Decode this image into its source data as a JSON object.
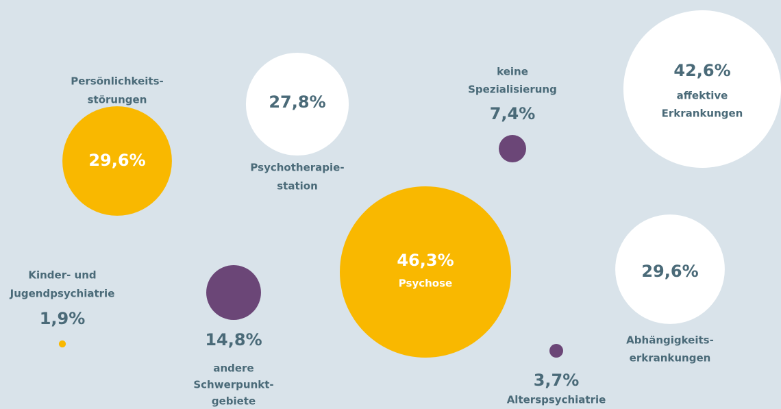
{
  "chart_data": {
    "type": "bubble",
    "categories": [
      [
        "Persönlichkeits-",
        "störungen"
      ],
      [
        "Psychotherapie-",
        "station"
      ],
      [
        "keine",
        "Spezialisierung"
      ],
      [
        "affektive",
        "Erkrankungen"
      ],
      [
        "Psychose"
      ],
      [
        "Abhängigkeits-",
        "erkrankungen"
      ],
      [
        "Alterspsychiatrie"
      ],
      [
        "andere",
        "Schwerpunkt-",
        "gebiete"
      ],
      [
        "Kinder- und",
        "Jugendpsychiatrie"
      ]
    ],
    "values": [
      29.6,
      27.8,
      7.4,
      42.6,
      46.3,
      29.6,
      3.7,
      14.8,
      1.9
    ],
    "value_labels": [
      "29,6%",
      "27,8%",
      "7,4%",
      "42,6%",
      "46,3%",
      "29,6%",
      "3,7%",
      "14,8%",
      "1,9%"
    ],
    "colors": [
      "#f9b800",
      "#ffffff",
      "#6b4677",
      "#ffffff",
      "#f9b800",
      "#ffffff",
      "#6b4677",
      "#6b4677",
      "#f9b800"
    ]
  }
}
